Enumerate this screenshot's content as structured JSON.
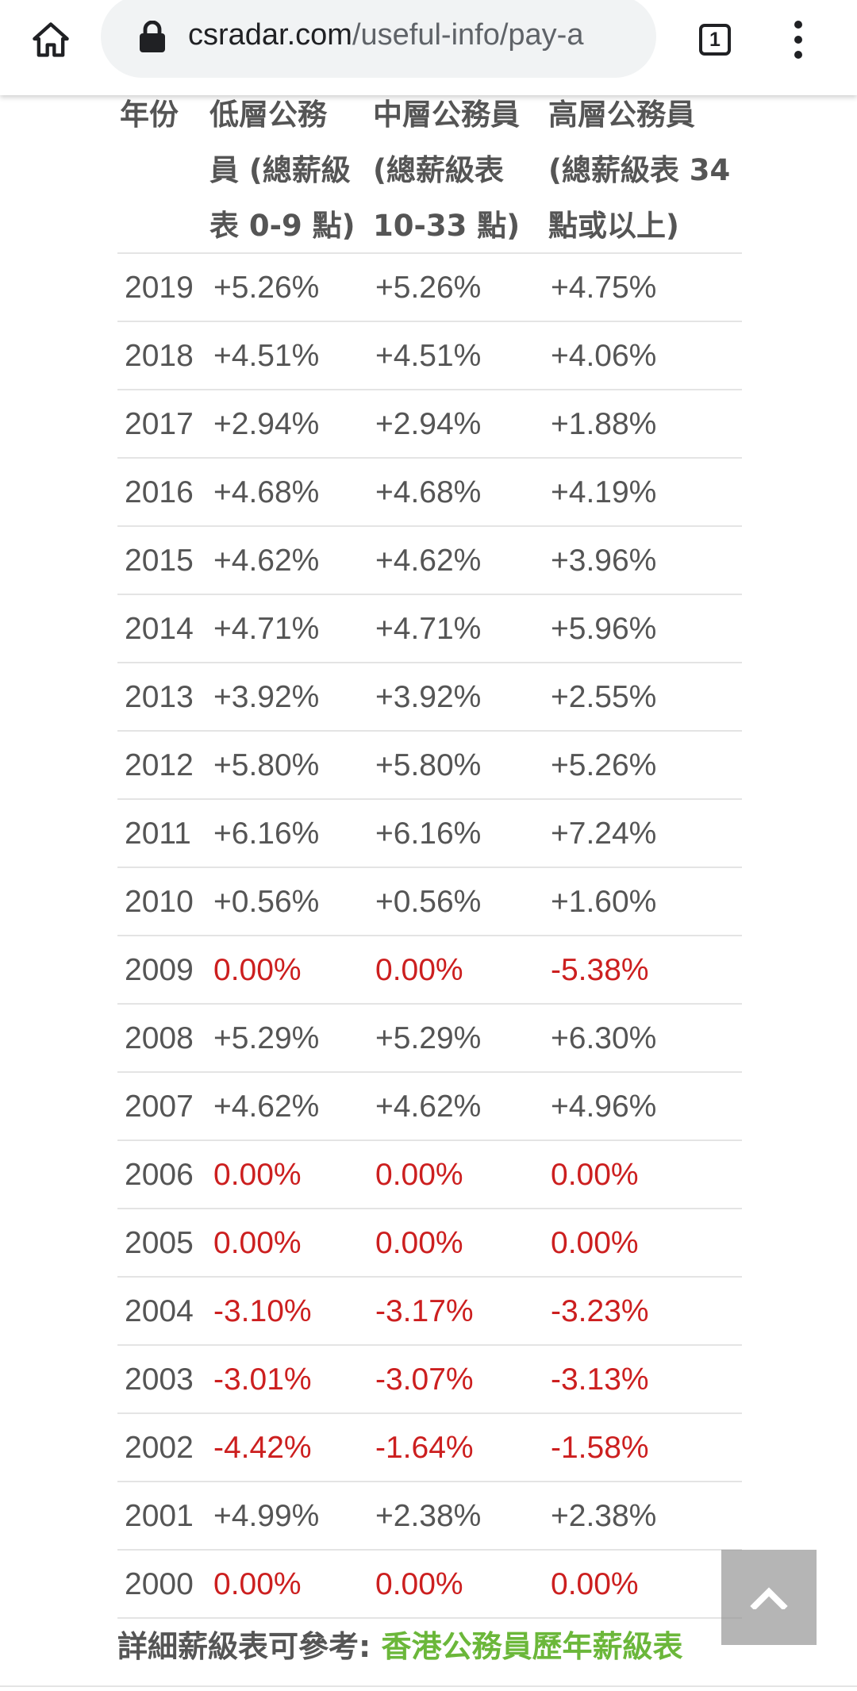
{
  "browser": {
    "url_domain": "csradar.com",
    "url_path": "/useful-info/pay-a",
    "tab_count": "1",
    "icons": {
      "home": "home-icon",
      "lock": "lock-icon",
      "tabs": "tab-switcher-icon",
      "menu": "more-vert-icon",
      "back_to_top": "chevron-up-icon"
    }
  },
  "table": {
    "headers": {
      "year": "年份",
      "low_line1": "低層公務",
      "low_line2": "員 (總薪級",
      "low_line3": "表 0-9 點)",
      "mid_line1": "中層公務員",
      "mid_line2": "(總薪級表",
      "mid_line3": "10-33 點)",
      "high_line1": "高層公務員",
      "high_line2": "(總薪級表 34",
      "high_line3": "點或以上)"
    },
    "rows": [
      {
        "year": "2019",
        "low": "+5.26%",
        "mid": "+5.26%",
        "high": "+4.75%"
      },
      {
        "year": "2018",
        "low": "+4.51%",
        "mid": "+4.51%",
        "high": "+4.06%"
      },
      {
        "year": "2017",
        "low": "+2.94%",
        "mid": "+2.94%",
        "high": "+1.88%"
      },
      {
        "year": "2016",
        "low": "+4.68%",
        "mid": "+4.68%",
        "high": "+4.19%"
      },
      {
        "year": "2015",
        "low": "+4.62%",
        "mid": "+4.62%",
        "high": "+3.96%"
      },
      {
        "year": "2014",
        "low": "+4.71%",
        "mid": "+4.71%",
        "high": "+5.96%"
      },
      {
        "year": "2013",
        "low": "+3.92%",
        "mid": "+3.92%",
        "high": "+2.55%"
      },
      {
        "year": "2012",
        "low": "+5.80%",
        "mid": "+5.80%",
        "high": "+5.26%"
      },
      {
        "year": "2011",
        "low": "+6.16%",
        "mid": "+6.16%",
        "high": "+7.24%"
      },
      {
        "year": "2010",
        "low": "+0.56%",
        "mid": "+0.56%",
        "high": "+1.60%"
      },
      {
        "year": "2009",
        "low": "0.00%",
        "mid": "0.00%",
        "high": "-5.38%"
      },
      {
        "year": "2008",
        "low": "+5.29%",
        "mid": "+5.29%",
        "high": "+6.30%"
      },
      {
        "year": "2007",
        "low": "+4.62%",
        "mid": "+4.62%",
        "high": "+4.96%"
      },
      {
        "year": "2006",
        "low": "0.00%",
        "mid": "0.00%",
        "high": "0.00%"
      },
      {
        "year": "2005",
        "low": "0.00%",
        "mid": "0.00%",
        "high": "0.00%"
      },
      {
        "year": "2004",
        "low": "-3.10%",
        "mid": "-3.17%",
        "high": "-3.23%"
      },
      {
        "year": "2003",
        "low": "-3.01%",
        "mid": "-3.07%",
        "high": "-3.13%"
      },
      {
        "year": "2002",
        "low": "-4.42%",
        "mid": "-1.64%",
        "high": "-1.58%"
      },
      {
        "year": "2001",
        "low": "+4.99%",
        "mid": "+2.38%",
        "high": "+2.38%"
      },
      {
        "year": "2000",
        "low": "0.00%",
        "mid": "0.00%",
        "high": "0.00%"
      }
    ]
  },
  "footer": {
    "label": "詳細薪級表可參考: ",
    "link_text": "香港公務員歷年薪級表"
  },
  "colors": {
    "positive_text": "#555555",
    "non_positive_text": "#cc1f1f",
    "link": "#6bb73a"
  }
}
